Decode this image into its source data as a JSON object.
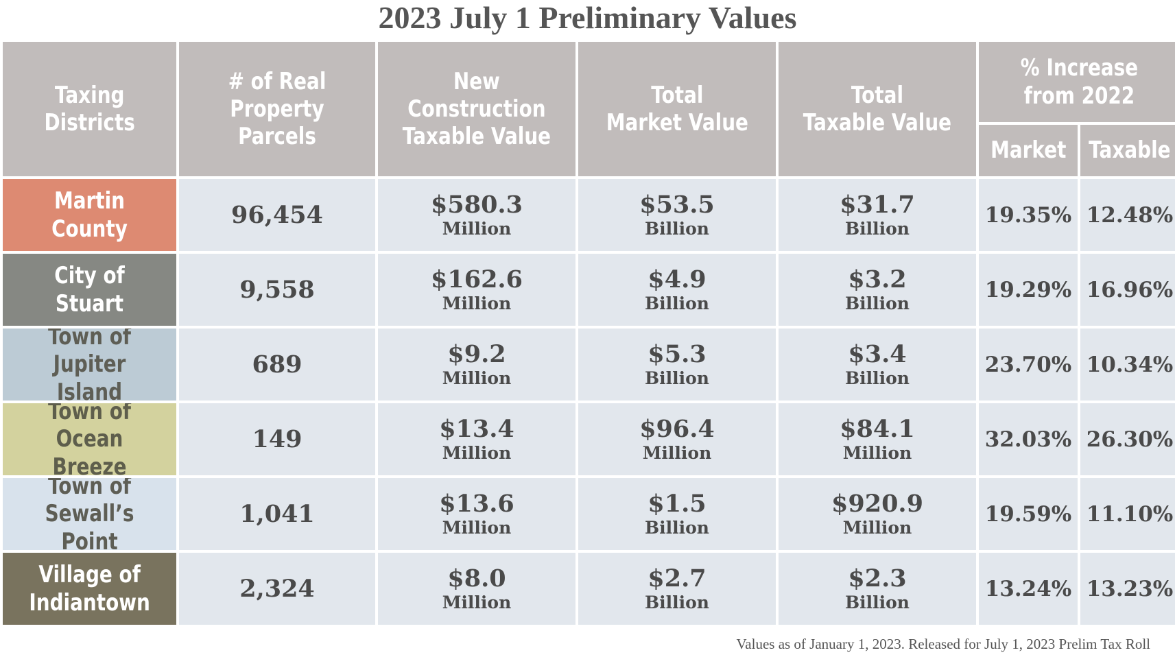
{
  "title": "2023 July 1 Preliminary Values",
  "headers": {
    "taxing_districts": "Taxing\nDistricts",
    "parcels": "# of Real\nProperty Parcels",
    "new_construction": "New\nConstruction\nTaxable Value",
    "total_market": "Total\nMarket Value",
    "total_taxable": "Total\nTaxable Value",
    "pct_increase": "% Increase\nfrom 2022",
    "market": "Market",
    "taxable": "Taxable"
  },
  "rows": [
    {
      "district": "Martin County",
      "district_color": "#dd8a72",
      "district_text_color": "#ffffff",
      "parcels": "96,454",
      "new_construction": {
        "value": "$580.3",
        "unit": "Million"
      },
      "market_value": {
        "value": "$53.5",
        "unit": "Billion"
      },
      "taxable_value": {
        "value": "$31.7",
        "unit": "Billion"
      },
      "pct_market": "19.35%",
      "pct_taxable": "12.48%"
    },
    {
      "district": "City of Stuart",
      "district_color": "#868883",
      "district_text_color": "#ffffff",
      "parcels": "9,558",
      "new_construction": {
        "value": "$162.6",
        "unit": "Million"
      },
      "market_value": {
        "value": "$4.9",
        "unit": "Billion"
      },
      "taxable_value": {
        "value": "$3.2",
        "unit": "Billion"
      },
      "pct_market": "19.29%",
      "pct_taxable": "16.96%"
    },
    {
      "district": "Town of\nJupiter Island",
      "district_color": "#bccbd5",
      "district_text_color": "#5e5e55",
      "parcels": "689",
      "new_construction": {
        "value": "$9.2",
        "unit": "Million"
      },
      "market_value": {
        "value": "$5.3",
        "unit": "Billion"
      },
      "taxable_value": {
        "value": "$3.4",
        "unit": "Billion"
      },
      "pct_market": "23.70%",
      "pct_taxable": "10.34%"
    },
    {
      "district": "Town of\nOcean Breeze",
      "district_color": "#d3d29e",
      "district_text_color": "#5e5e4c",
      "parcels": "149",
      "new_construction": {
        "value": "$13.4",
        "unit": "Million"
      },
      "market_value": {
        "value": "$96.4",
        "unit": "Million"
      },
      "taxable_value": {
        "value": "$84.1",
        "unit": "Million"
      },
      "pct_market": "32.03%",
      "pct_taxable": "26.30%"
    },
    {
      "district": "Town of\nSewall’s Point",
      "district_color": "#d8e2ec",
      "district_text_color": "#5e5e55",
      "parcels": "1,041",
      "new_construction": {
        "value": "$13.6",
        "unit": "Million"
      },
      "market_value": {
        "value": "$1.5",
        "unit": "Billion"
      },
      "taxable_value": {
        "value": "$920.9",
        "unit": "Million"
      },
      "pct_market": "19.59%",
      "pct_taxable": "11.10%"
    },
    {
      "district": "Village of\nIndiantown",
      "district_color": "#79735e",
      "district_text_color": "#ffffff",
      "parcels": "2,324",
      "new_construction": {
        "value": "$8.0",
        "unit": "Million"
      },
      "market_value": {
        "value": "$2.7",
        "unit": "Billion"
      },
      "taxable_value": {
        "value": "$2.3",
        "unit": "Billion"
      },
      "pct_market": "13.24%",
      "pct_taxable": "13.23%"
    }
  ],
  "footnote": "Values as of January 1, 2023. Released for July 1, 2023 Prelim Tax Roll",
  "colors": {
    "header_bg": "#c1bcbb",
    "cell_bg": "#e2e7ed",
    "text": "#4a4a4a"
  }
}
